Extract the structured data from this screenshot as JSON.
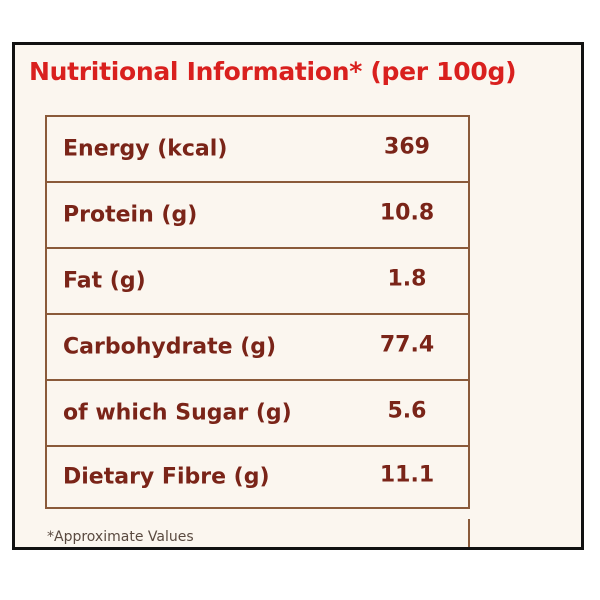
{
  "title": "Nutritional Information* (per 100g)",
  "rows": [
    {
      "label": "Energy (kcal)",
      "value": "369"
    },
    {
      "label": "Protein (g)",
      "value": "10.8"
    },
    {
      "label": "Fat (g)",
      "value": "1.8"
    },
    {
      "label": "Carbohydrate (g)",
      "value": "77.4"
    },
    {
      "label": "of which Sugar (g)",
      "value": "5.6"
    },
    {
      "label": "Dietary Fibre (g)",
      "value": "11.1"
    }
  ],
  "footnote": "*Approximate Values",
  "colors": {
    "title": "#d9201e",
    "text": "#7a2418",
    "border": "#8a5a3a",
    "background": "#fbf6ef"
  }
}
